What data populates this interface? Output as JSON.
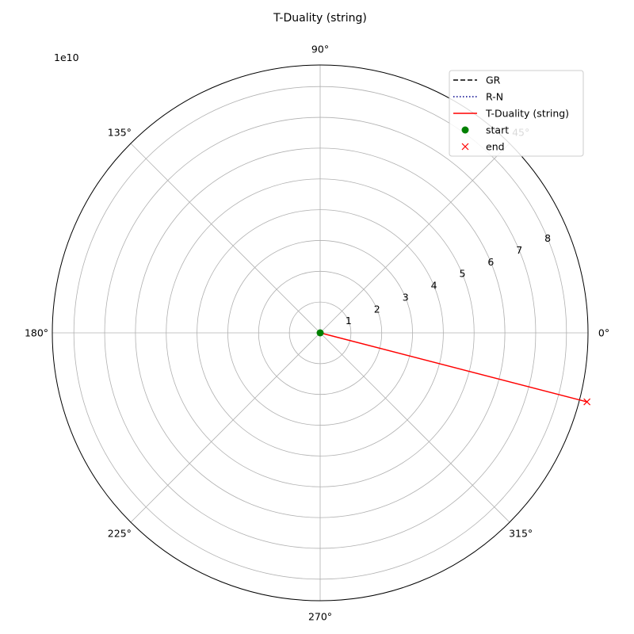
{
  "chart_data": {
    "type": "line",
    "projection": "polar",
    "title": "T-Duality (string)",
    "radial_offset_label": "1e10",
    "r_scale": 10000000000,
    "rlim": [
      0,
      87000000000
    ],
    "r_ticks": [
      1,
      2,
      3,
      4,
      5,
      6,
      7,
      8
    ],
    "r_tick_labels": [
      "1",
      "2",
      "3",
      "4",
      "5",
      "6",
      "7",
      "8"
    ],
    "theta_ticks_deg": [
      0,
      45,
      90,
      135,
      180,
      225,
      270,
      315
    ],
    "theta_tick_labels": [
      "0°",
      "45°",
      "90°",
      "135°",
      "180°",
      "225°",
      "270°",
      "315°"
    ],
    "grid": true,
    "legend_position": "top-right",
    "series": [
      {
        "name": "GR",
        "color": "#000000",
        "style": "dashed",
        "points": []
      },
      {
        "name": "R-N",
        "color": "#00008b",
        "style": "dotted",
        "points": []
      },
      {
        "name": "T-Duality (string)",
        "color": "#ff0000",
        "style": "solid",
        "points": [
          {
            "theta_deg": 0,
            "r": 0
          },
          {
            "theta_deg": -14.5,
            "r": 89500000000
          }
        ]
      },
      {
        "name": "start",
        "color": "#008000",
        "style": "marker-circle",
        "points": [
          {
            "theta_deg": 0,
            "r": 0
          }
        ]
      },
      {
        "name": "end",
        "color": "#ff0000",
        "style": "marker-x",
        "points": [
          {
            "theta_deg": -14.5,
            "r": 89500000000
          }
        ]
      }
    ]
  }
}
